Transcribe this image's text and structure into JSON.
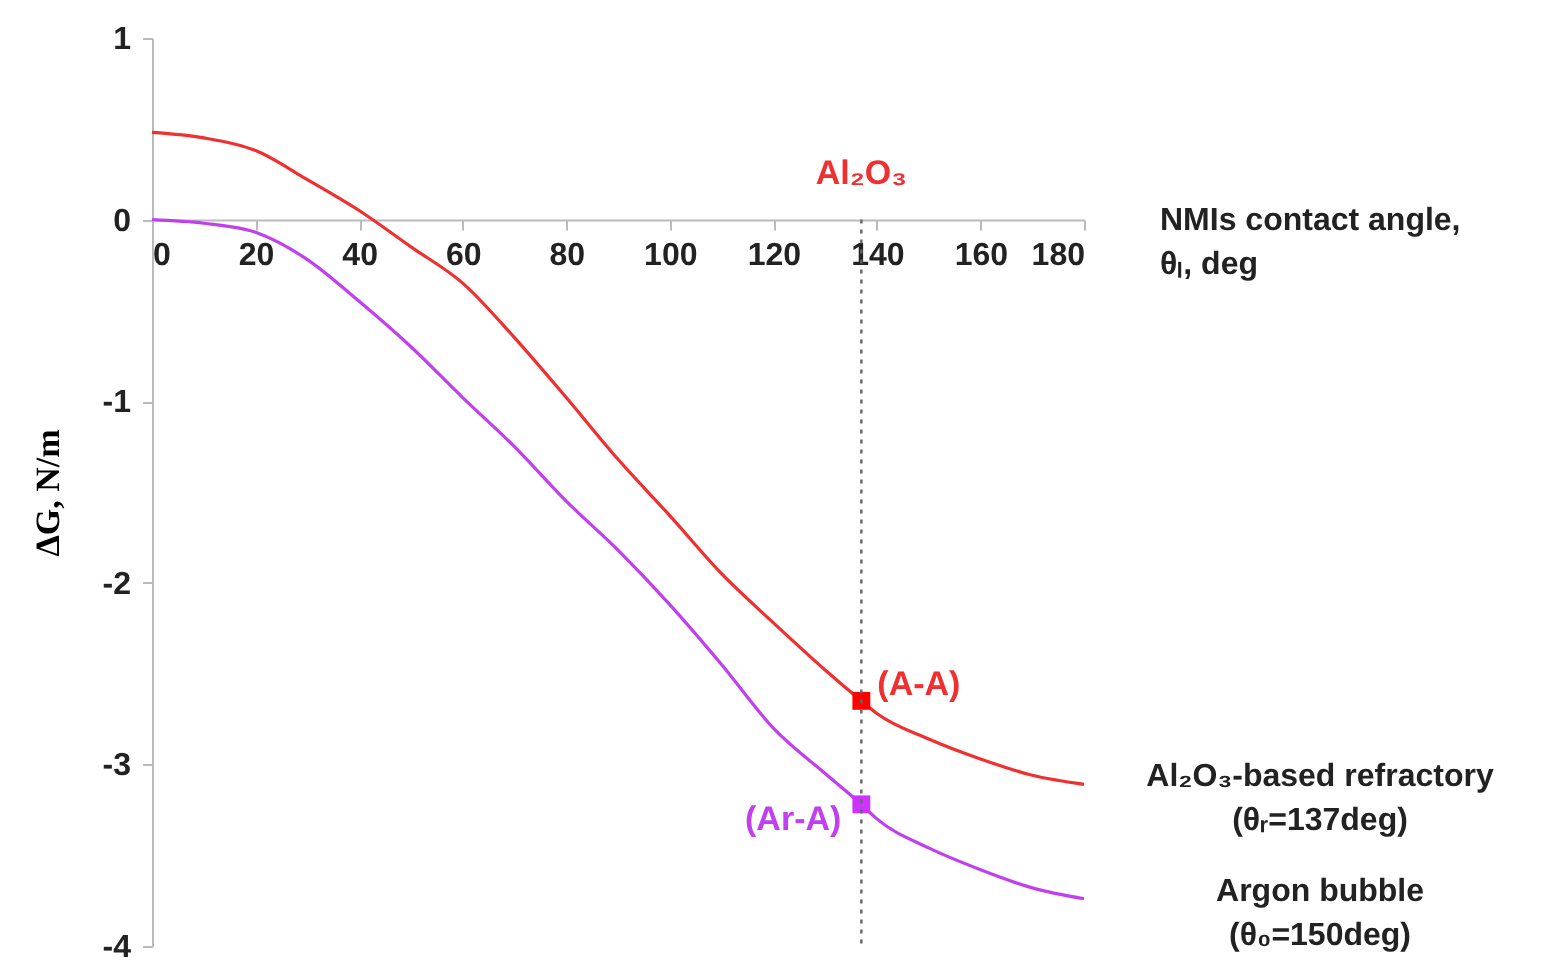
{
  "chart_data": {
    "type": "line",
    "xlabel": "NMIs contact angle, θₗ, deg",
    "ylabel": "ΔG, N/m",
    "xlim": [
      0,
      180
    ],
    "xticks": [
      0,
      20,
      40,
      60,
      80,
      100,
      120,
      140,
      160,
      180
    ],
    "ylim": [
      -4,
      1
    ],
    "yticks": [
      -4,
      -3,
      -2,
      -1,
      0,
      1
    ],
    "grid": false,
    "marker": "none",
    "line_style": "solid",
    "series": [
      {
        "name": "Al₂O₃-based refractory (θᵣ=137deg)",
        "color": "#f03030",
        "x": [
          0,
          10,
          20,
          30,
          40,
          50,
          60,
          70,
          80,
          90,
          100,
          110,
          120,
          130,
          137,
          140,
          150,
          160,
          170,
          180
        ],
        "values": [
          0.48,
          0.45,
          0.38,
          0.22,
          0.05,
          -0.15,
          -0.35,
          -0.65,
          -0.98,
          -1.32,
          -1.63,
          -1.95,
          -2.22,
          -2.48,
          -2.65,
          -2.72,
          -2.86,
          -2.97,
          -3.06,
          -3.11
        ]
      },
      {
        "name": "Argon bubble (θ₀=150deg)",
        "color": "#c040f0",
        "x": [
          0,
          10,
          20,
          30,
          40,
          50,
          60,
          70,
          80,
          90,
          100,
          110,
          120,
          130,
          137,
          140,
          150,
          160,
          170,
          180
        ],
        "values": [
          0,
          -0.02,
          -0.07,
          -0.22,
          -0.45,
          -0.7,
          -0.98,
          -1.25,
          -1.55,
          -1.82,
          -2.12,
          -2.45,
          -2.8,
          -3.05,
          -3.22,
          -3.3,
          -3.46,
          -3.58,
          -3.68,
          -3.74
        ]
      },
      {
        "type": "scatter",
        "marker": "square",
        "color": "#ff0000",
        "x": [
          137
        ],
        "values": [
          -2.65
        ]
      },
      {
        "type": "scatter",
        "marker": "square",
        "color": "#cc33ff",
        "x": [
          137
        ],
        "values": [
          -3.22
        ]
      }
    ],
    "ref_lines": [
      {
        "axis": "x",
        "value": 137,
        "color": "#666666",
        "line_style": "dotted",
        "label": "Al₂O₃"
      }
    ],
    "annotations": [
      {
        "text": "(A-A)",
        "x": 137,
        "y": -2.65
      },
      {
        "text": "(Ar-A)",
        "x": 137,
        "y": -3.22
      }
    ]
  }
}
